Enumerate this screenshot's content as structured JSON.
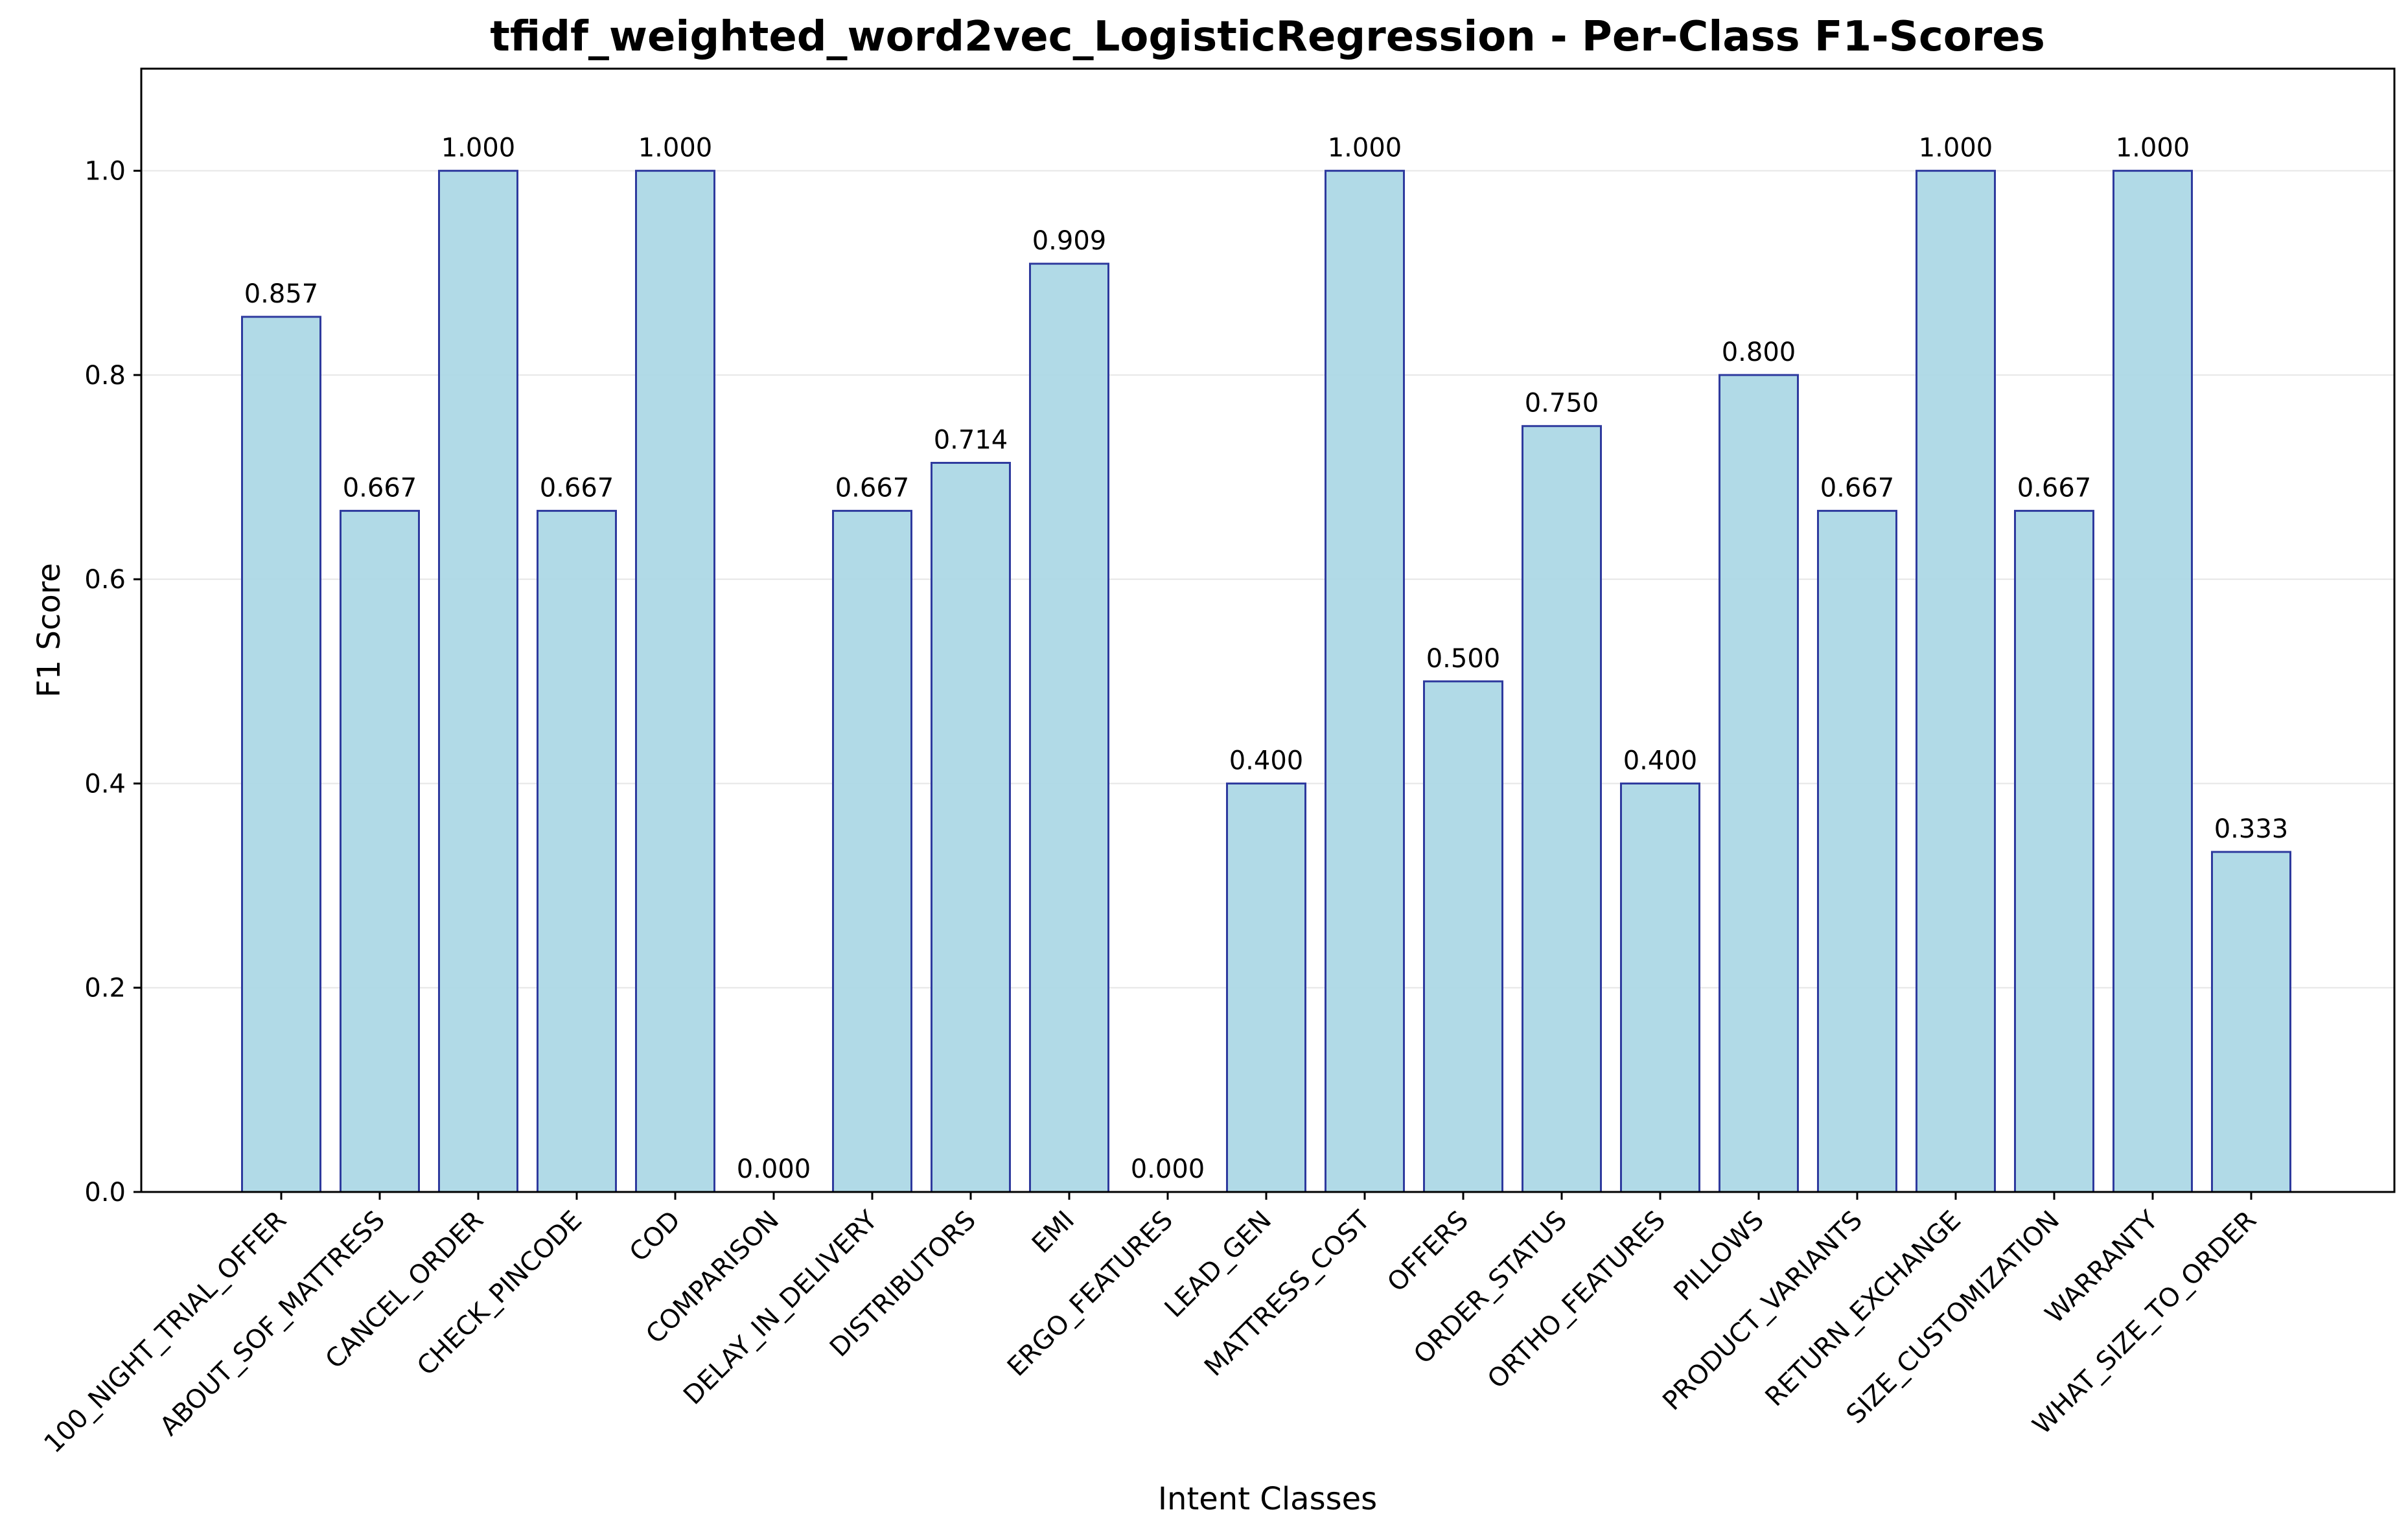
{
  "chart_data": {
    "type": "bar",
    "title": "tfidf_weighted_word2vec_LogisticRegression - Per-Class F1-Scores",
    "xlabel": "Intent Classes",
    "ylabel": "F1 Score",
    "ylim": [
      0,
      1.1
    ],
    "yticks": [
      0.0,
      0.2,
      0.4,
      0.6,
      0.8,
      1.0
    ],
    "ytick_labels": [
      "0.0",
      "0.2",
      "0.4",
      "0.6",
      "0.8",
      "1.0"
    ],
    "grid": "horizontal",
    "bar_color": "#ADD8E6",
    "edge_color": "#2E3A9E",
    "categories": [
      "100_NIGHT_TRIAL_OFFER",
      "ABOUT_SOF_MATTRESS",
      "CANCEL_ORDER",
      "CHECK_PINCODE",
      "COD",
      "COMPARISON",
      "DELAY_IN_DELIVERY",
      "DISTRIBUTORS",
      "EMI",
      "ERGO_FEATURES",
      "LEAD_GEN",
      "MATTRESS_COST",
      "OFFERS",
      "ORDER_STATUS",
      "ORTHO_FEATURES",
      "PILLOWS",
      "PRODUCT_VARIANTS",
      "RETURN_EXCHANGE",
      "SIZE_CUSTOMIZATION",
      "WARRANTY",
      "WHAT_SIZE_TO_ORDER"
    ],
    "values": [
      0.857,
      0.667,
      1.0,
      0.667,
      1.0,
      0.0,
      0.667,
      0.714,
      0.909,
      0.0,
      0.4,
      1.0,
      0.5,
      0.75,
      0.4,
      0.8,
      0.667,
      1.0,
      0.667,
      1.0,
      0.333
    ],
    "value_labels": [
      "0.857",
      "0.667",
      "1.000",
      "0.667",
      "1.000",
      "0.000",
      "0.667",
      "0.714",
      "0.909",
      "0.000",
      "0.400",
      "1.000",
      "0.500",
      "0.750",
      "0.400",
      "0.800",
      "0.667",
      "1.000",
      "0.667",
      "1.000",
      "0.333"
    ]
  }
}
